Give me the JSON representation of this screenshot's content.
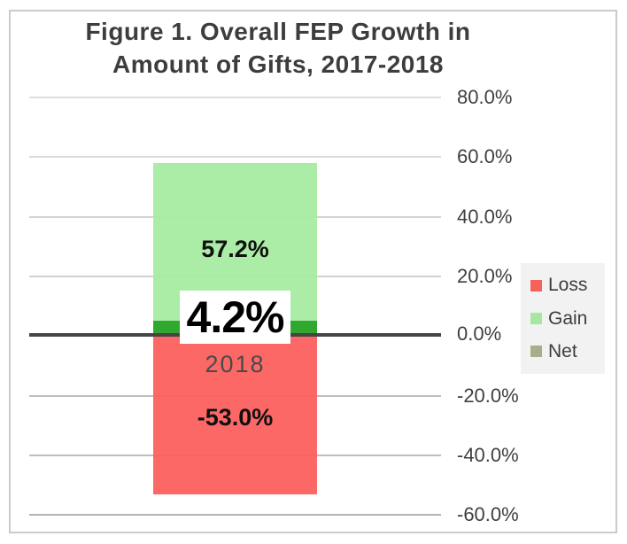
{
  "figure": {
    "title_line1": "Figure 1. Overall FEP Growth in",
    "title_line2": "Amount of Gifts, 2017-2018"
  },
  "chart_data": {
    "type": "bar",
    "title": "Figure 1. Overall FEP Growth in Amount of Gifts, 2017-2018",
    "categories": [
      "2018"
    ],
    "series": [
      {
        "name": "Gain",
        "values": [
          57.2
        ],
        "label": "57.2%",
        "color": "#a6eca0"
      },
      {
        "name": "Net",
        "values": [
          4.2
        ],
        "label": "4.2%",
        "color": "#28a428"
      },
      {
        "name": "Loss",
        "values": [
          -53.0
        ],
        "label": "-53.0%",
        "color": "#fb5f5c"
      }
    ],
    "xlabel": "",
    "ylabel": "",
    "ylim": [
      -60,
      80
    ],
    "ytick_step": 20,
    "yticks": [
      "80.0%",
      "60.0%",
      "40.0%",
      "20.0%",
      "0.0%",
      "-20.0%",
      "-40.0%",
      "-60.0%"
    ],
    "grid": true,
    "zero_line": true,
    "legend_position": "right"
  },
  "legend": {
    "items": [
      {
        "label": "Loss",
        "color": "#f4625a"
      },
      {
        "label": "Gain",
        "color": "#a6e7a1"
      },
      {
        "label": "Net",
        "color": "#abac8b"
      }
    ]
  }
}
